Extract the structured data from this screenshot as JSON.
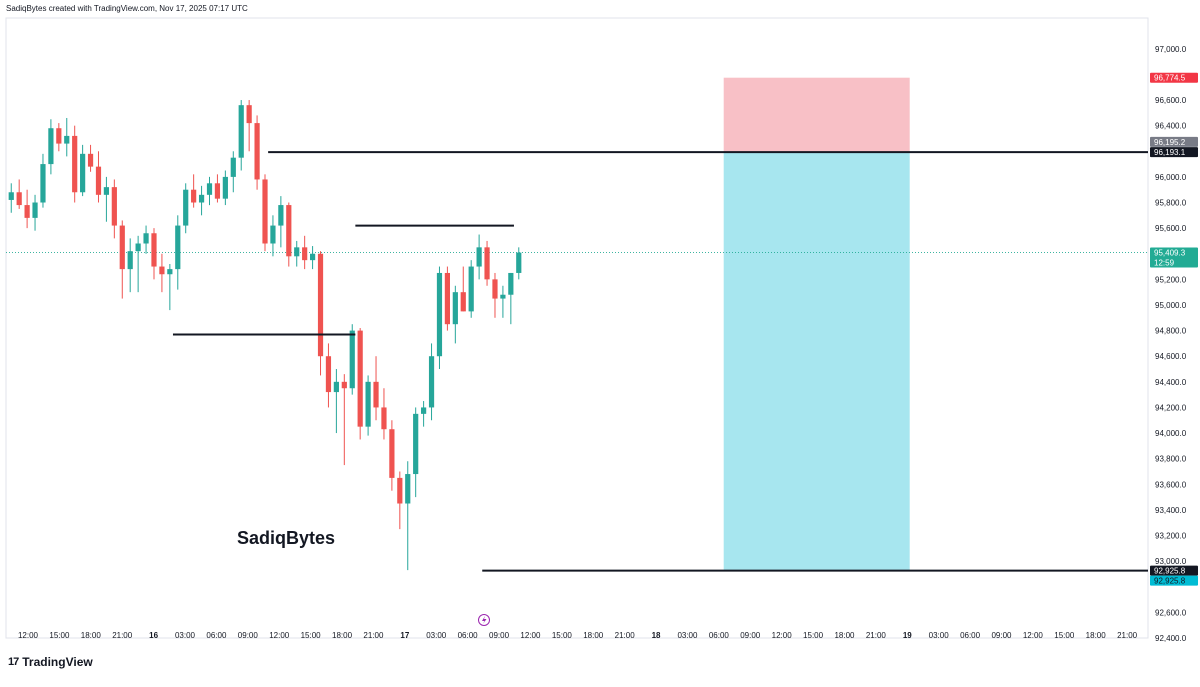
{
  "header": {
    "attribution": "SadiqBytes created with TradingView.com, Nov 17, 2025 07:17 UTC"
  },
  "watermark": "SadiqBytes",
  "footer": {
    "brand": "TradingView",
    "brand_icon": "tradingview-logo-icon"
  },
  "colors": {
    "up": "#26a69a",
    "down": "#ef5350",
    "profit_zone": "#a7e6ef",
    "stop_zone": "#f8c0c6",
    "last_price": "#22ab94",
    "stop_badge": "#f23645",
    "target_badge": "#00bcd4"
  },
  "chart_data": {
    "type": "candlestick",
    "ylim": [
      92400,
      97100
    ],
    "y_ticks": [
      {
        "v": 97000,
        "label": "97,000.0"
      },
      {
        "v": 96600,
        "label": "96,600.0"
      },
      {
        "v": 96400,
        "label": "96,400.0"
      },
      {
        "v": 96200,
        "label": "96,200.0"
      },
      {
        "v": 96000,
        "label": "96,000.0"
      },
      {
        "v": 95800,
        "label": "95,800.0"
      },
      {
        "v": 95600,
        "label": "95,600.0"
      },
      {
        "v": 95200,
        "label": "95,200.0"
      },
      {
        "v": 95000,
        "label": "95,000.0"
      },
      {
        "v": 94800,
        "label": "94,800.0"
      },
      {
        "v": 94600,
        "label": "94,600.0"
      },
      {
        "v": 94400,
        "label": "94,400.0"
      },
      {
        "v": 94200,
        "label": "94,200.0"
      },
      {
        "v": 94000,
        "label": "94,000.0"
      },
      {
        "v": 93800,
        "label": "93,800.0"
      },
      {
        "v": 93600,
        "label": "93,600.0"
      },
      {
        "v": 93400,
        "label": "93,400.0"
      },
      {
        "v": 93200,
        "label": "93,200.0"
      },
      {
        "v": 93000,
        "label": "93,000.0"
      },
      {
        "v": 92600,
        "label": "92,600.0"
      },
      {
        "v": 92400,
        "label": "92,400.0"
      }
    ],
    "price_labels": [
      {
        "name": "stop-loss-label",
        "v": 96774.5,
        "label": "96,774.5",
        "color": "#f23645",
        "text_color": "#ffffff"
      },
      {
        "name": "entry-upper-label",
        "v": 96195.2,
        "label": "96,195.2",
        "color": "#787b86",
        "text_color": "#ffffff"
      },
      {
        "name": "entry-label",
        "v": 96193.1,
        "label": "96,193.1",
        "color": "#131722",
        "text_color": "#ffffff"
      },
      {
        "name": "current-price-label",
        "v": 95409.3,
        "label": "95,409.3",
        "sub": "12:59",
        "color": "#22ab94",
        "text_color": "#ffffff"
      },
      {
        "name": "target-level-label",
        "v": 92925.8,
        "label": "92,925.8",
        "color": "#131722",
        "text_color": "#ffffff"
      },
      {
        "name": "take-profit-label",
        "v": 92925.8,
        "label": "92,925.8",
        "color": "#00bcd4",
        "text_color": "#131722"
      }
    ],
    "x_ticks": [
      {
        "i": 0,
        "label": "12:00"
      },
      {
        "i": 3,
        "label": "15:00"
      },
      {
        "i": 6,
        "label": "18:00"
      },
      {
        "i": 9,
        "label": "21:00"
      },
      {
        "i": 12,
        "label": "16"
      },
      {
        "i": 15,
        "label": "03:00"
      },
      {
        "i": 18,
        "label": "06:00"
      },
      {
        "i": 21,
        "label": "09:00"
      },
      {
        "i": 24,
        "label": "12:00"
      },
      {
        "i": 27,
        "label": "15:00"
      },
      {
        "i": 30,
        "label": "18:00"
      },
      {
        "i": 33,
        "label": "21:00"
      },
      {
        "i": 36,
        "label": "17"
      },
      {
        "i": 39,
        "label": "03:00"
      },
      {
        "i": 42,
        "label": "06:00"
      },
      {
        "i": 45,
        "label": "09:00"
      },
      {
        "i": 48,
        "label": "12:00"
      },
      {
        "i": 51,
        "label": "15:00"
      },
      {
        "i": 54,
        "label": "18:00"
      },
      {
        "i": 57,
        "label": "21:00"
      },
      {
        "i": 60,
        "label": "18"
      },
      {
        "i": 63,
        "label": "03:00"
      },
      {
        "i": 66,
        "label": "06:00"
      },
      {
        "i": 69,
        "label": "09:00"
      },
      {
        "i": 72,
        "label": "12:00"
      },
      {
        "i": 75,
        "label": "15:00"
      },
      {
        "i": 78,
        "label": "18:00"
      },
      {
        "i": 81,
        "label": "21:00"
      },
      {
        "i": 84,
        "label": "19"
      },
      {
        "i": 87,
        "label": "03:00"
      },
      {
        "i": 90,
        "label": "06:00"
      },
      {
        "i": 93,
        "label": "09:00"
      },
      {
        "i": 96,
        "label": "12:00"
      },
      {
        "i": 99,
        "label": "15:00"
      },
      {
        "i": 102,
        "label": "18:00"
      },
      {
        "i": 105,
        "label": "21:00"
      }
    ],
    "candles": [
      [
        95820,
        95950,
        95720,
        95880
      ],
      [
        95880,
        95980,
        95750,
        95780
      ],
      [
        95780,
        95900,
        95600,
        95680
      ],
      [
        95680,
        95860,
        95580,
        95800
      ],
      [
        95800,
        96180,
        95760,
        96100
      ],
      [
        96100,
        96450,
        96020,
        96380
      ],
      [
        96380,
        96420,
        96200,
        96260
      ],
      [
        96260,
        96460,
        96160,
        96320
      ],
      [
        96320,
        96400,
        95800,
        95880
      ],
      [
        95880,
        96250,
        95850,
        96180
      ],
      [
        96180,
        96250,
        96040,
        96080
      ],
      [
        96080,
        96200,
        95800,
        95860
      ],
      [
        95860,
        96000,
        95650,
        95920
      ],
      [
        95920,
        95980,
        95520,
        95620
      ],
      [
        95620,
        95660,
        95050,
        95280
      ],
      [
        95280,
        95520,
        95100,
        95420
      ],
      [
        95420,
        95540,
        95100,
        95480
      ],
      [
        95480,
        95620,
        95400,
        95560
      ],
      [
        95560,
        95600,
        95200,
        95300
      ],
      [
        95300,
        95400,
        95100,
        95240
      ],
      [
        95240,
        95320,
        94960,
        95280
      ],
      [
        95280,
        95700,
        95120,
        95620
      ],
      [
        95620,
        95950,
        95560,
        95900
      ],
      [
        95900,
        96020,
        95760,
        95800
      ],
      [
        95800,
        95930,
        95700,
        95860
      ],
      [
        95860,
        96000,
        95780,
        95950
      ],
      [
        95950,
        96020,
        95800,
        95830
      ],
      [
        95830,
        96050,
        95780,
        96000
      ],
      [
        96000,
        96200,
        95880,
        96150
      ],
      [
        96150,
        96600,
        96050,
        96560
      ],
      [
        96560,
        96600,
        96200,
        96420
      ],
      [
        96420,
        96480,
        95900,
        95980
      ],
      [
        95980,
        96020,
        95420,
        95480
      ],
      [
        95480,
        95700,
        95380,
        95620
      ],
      [
        95620,
        95850,
        95450,
        95780
      ],
      [
        95780,
        95800,
        95300,
        95380
      ],
      [
        95380,
        95500,
        95300,
        95450
      ],
      [
        95450,
        95540,
        95280,
        95350
      ],
      [
        95350,
        95460,
        95280,
        95400
      ],
      [
        95400,
        95420,
        94450,
        94600
      ],
      [
        94600,
        94700,
        94200,
        94320
      ],
      [
        94320,
        94500,
        94000,
        94400
      ],
      [
        94400,
        94460,
        93750,
        94350
      ],
      [
        94350,
        94850,
        94300,
        94800
      ],
      [
        94800,
        94820,
        93950,
        94050
      ],
      [
        94050,
        94450,
        93980,
        94400
      ],
      [
        94400,
        94600,
        94100,
        94200
      ],
      [
        94200,
        94350,
        93950,
        94030
      ],
      [
        94030,
        94100,
        93550,
        93650
      ],
      [
        93650,
        93700,
        93250,
        93450
      ],
      [
        93450,
        93780,
        92930,
        93680
      ],
      [
        93680,
        94200,
        93500,
        94150
      ],
      [
        94150,
        94250,
        94050,
        94200
      ],
      [
        94200,
        94700,
        94100,
        94600
      ],
      [
        94600,
        95300,
        94500,
        95250
      ],
      [
        95250,
        95300,
        94800,
        94850
      ],
      [
        94850,
        95150,
        94700,
        95100
      ],
      [
        95100,
        95300,
        94950,
        94950
      ],
      [
        94950,
        95350,
        94900,
        95300
      ],
      [
        95300,
        95550,
        95200,
        95450
      ],
      [
        95450,
        95500,
        95150,
        95200
      ],
      [
        95200,
        95250,
        94900,
        95050
      ],
      [
        95050,
        95150,
        94900,
        95080
      ],
      [
        95080,
        95250,
        94850,
        95250
      ],
      [
        95250,
        95450,
        95200,
        95409
      ]
    ],
    "candle_slot_start": 25,
    "lines": [
      {
        "name": "resistance-line-96193",
        "v": 96193.1,
        "from": 41,
        "to": null
      },
      {
        "name": "lower-low-line-94770",
        "v": 94770,
        "from": 29,
        "to": 52
      },
      {
        "name": "upper-line-95620",
        "v": 95620,
        "from": 52,
        "to": 72
      },
      {
        "name": "target-line-92925",
        "v": 92925.8,
        "from": 68,
        "to": null
      }
    ],
    "position_tool": {
      "type": "short",
      "entry": 96193.1,
      "stop": 96774.5,
      "target": 92925.8
    },
    "current_price": 95409.3
  }
}
